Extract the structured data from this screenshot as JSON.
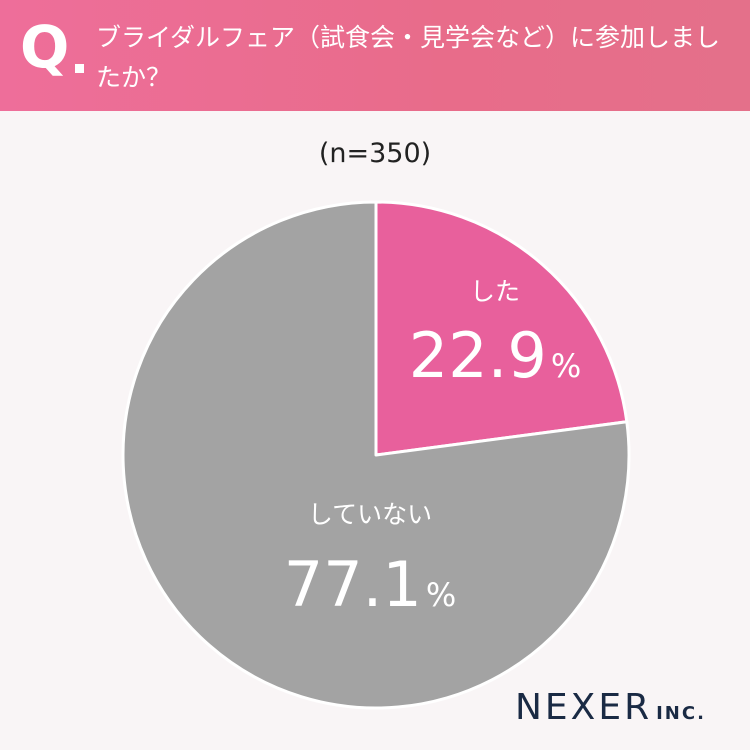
{
  "header": {
    "q_mark": "Q",
    "question": "ブライダルフェア（試食会・見学会など）に参加しましたか？"
  },
  "sample_size": "(n=350)",
  "chart_data": {
    "type": "pie",
    "title": "ブライダルフェア（試食会・見学会など）に参加しましたか？",
    "unit": "%",
    "slices": [
      {
        "label": "した",
        "value": 22.9,
        "color": "#e8609c"
      },
      {
        "label": "していない",
        "value": 77.1,
        "color": "#a3a3a3"
      }
    ]
  },
  "brand": {
    "main": "NEXER",
    "sub": "INC."
  },
  "colors": {
    "header": "#e86c8a",
    "background": "#f9f5f6",
    "label_text": "#ffffff"
  }
}
